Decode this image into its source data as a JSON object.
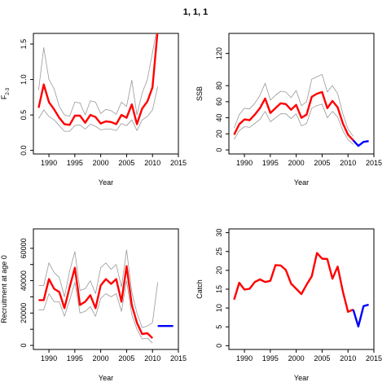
{
  "title": "1, 1, 1",
  "colors": {
    "estimate": "#ff0000",
    "interval": "#999999",
    "projection": "#0000ff"
  },
  "chart_data": [
    {
      "id": "F",
      "type": "line",
      "title": "",
      "xlabel": "Year",
      "ylabel": "F",
      "ylabel_sub": "2-3",
      "xlim": [
        1987,
        2015
      ],
      "ylim": [
        -0.05,
        1.65
      ],
      "xticks": [
        1990,
        1995,
        2000,
        2005,
        2010,
        2015
      ],
      "yticks": [
        0.0,
        0.5,
        1.0,
        1.5
      ],
      "ytick_labels": [
        "0.0",
        "0.5",
        "1.0",
        "1.5"
      ],
      "x": [
        1988,
        1989,
        1990,
        1991,
        1992,
        1993,
        1994,
        1995,
        1996,
        1997,
        1998,
        1999,
        2000,
        2001,
        2002,
        2003,
        2004,
        2005,
        2006,
        2007,
        2008,
        2009,
        2010,
        2011
      ],
      "series": [
        {
          "role": "estimate",
          "values": [
            0.6,
            0.93,
            0.68,
            0.58,
            0.46,
            0.37,
            0.36,
            0.49,
            0.49,
            0.39,
            0.5,
            0.47,
            0.38,
            0.41,
            0.4,
            0.37,
            0.5,
            0.46,
            0.65,
            0.37,
            0.59,
            0.69,
            0.89,
            1.7
          ]
        },
        {
          "role": "upper",
          "values": [
            0.85,
            1.45,
            1.0,
            0.87,
            0.62,
            0.5,
            0.48,
            0.68,
            0.67,
            0.5,
            0.7,
            0.68,
            0.52,
            0.58,
            0.56,
            0.51,
            0.68,
            0.62,
            0.99,
            0.5,
            0.81,
            1.0,
            1.38,
            1.78
          ]
        },
        {
          "role": "lower",
          "values": [
            0.45,
            0.57,
            0.48,
            0.43,
            0.35,
            0.27,
            0.27,
            0.35,
            0.36,
            0.3,
            0.37,
            0.34,
            0.29,
            0.3,
            0.3,
            0.28,
            0.38,
            0.35,
            0.43,
            0.28,
            0.43,
            0.48,
            0.57,
            0.9
          ]
        }
      ]
    },
    {
      "id": "SSB",
      "type": "line",
      "title": "",
      "xlabel": "Year",
      "ylabel": "SSB",
      "xlim": [
        1987,
        2015
      ],
      "ylim": [
        -5,
        145
      ],
      "xticks": [
        1990,
        1995,
        2000,
        2005,
        2010,
        2015
      ],
      "yticks": [
        0,
        20,
        40,
        60,
        80,
        120
      ],
      "ytick_labels": [
        "0",
        "20",
        "40",
        "60",
        "80",
        "120"
      ],
      "x": [
        1988,
        1989,
        1990,
        1991,
        1992,
        1993,
        1994,
        1995,
        1996,
        1997,
        1998,
        1999,
        2000,
        2001,
        2002,
        2003,
        2004,
        2005,
        2006,
        2007,
        2008,
        2009,
        2010,
        2011
      ],
      "series": [
        {
          "role": "estimate",
          "values": [
            19,
            32,
            38,
            37,
            44,
            52,
            64,
            46,
            52,
            58,
            57,
            50,
            56,
            40,
            44,
            66,
            70,
            72,
            52,
            61,
            53,
            33,
            19,
            12
          ]
        },
        {
          "role": "upper",
          "values": [
            27,
            44,
            52,
            51,
            58,
            68,
            83,
            62,
            68,
            73,
            72,
            65,
            74,
            55,
            60,
            88,
            91,
            94,
            72,
            80,
            70,
            45,
            26,
            17
          ]
        },
        {
          "role": "lower",
          "values": [
            13,
            24,
            29,
            28,
            33,
            38,
            48,
            35,
            40,
            45,
            45,
            39,
            45,
            30,
            33,
            52,
            55,
            57,
            40,
            48,
            41,
            24,
            13,
            7
          ]
        },
        {
          "role": "projection",
          "x": [
            2011,
            2012,
            2013,
            2014
          ],
          "values": [
            12,
            5,
            10,
            11
          ]
        }
      ]
    },
    {
      "id": "Recruitment",
      "type": "line",
      "title": "",
      "xlabel": "Year",
      "ylabel": "Recruitment at age 0",
      "xlim": [
        1987,
        2015
      ],
      "ylim": [
        -2500,
        72000
      ],
      "xticks": [
        1990,
        1995,
        2000,
        2005,
        2010,
        2015
      ],
      "yticks": [
        0,
        10000,
        20000,
        30000,
        40000,
        50000,
        60000
      ],
      "ytick_labels": [
        "0",
        "",
        "20000",
        "",
        "40000",
        "",
        "60000"
      ],
      "x": [
        1988,
        1989,
        1990,
        1991,
        1992,
        1993,
        1994,
        1995,
        1996,
        1997,
        1998,
        1999,
        2000,
        2001,
        2002,
        2003,
        2004,
        2005,
        2006,
        2007,
        2008,
        2009,
        2010
      ],
      "series": [
        {
          "role": "estimate",
          "values": [
            28000,
            28000,
            41000,
            35000,
            33000,
            23000,
            36000,
            48000,
            25000,
            27000,
            31000,
            23000,
            37000,
            41000,
            38000,
            41000,
            27000,
            49000,
            25000,
            14000,
            7000,
            7500,
            4500
          ]
        },
        {
          "role": "upper",
          "values": [
            37000,
            37000,
            51000,
            45000,
            42000,
            30000,
            46000,
            58000,
            34000,
            35000,
            40000,
            32000,
            48000,
            51000,
            47000,
            50000,
            36000,
            59000,
            33000,
            20000,
            11000,
            12000,
            14000
          ]
        },
        {
          "role": "lower",
          "values": [
            22000,
            22000,
            32000,
            27000,
            27000,
            18000,
            28000,
            39000,
            20000,
            21000,
            24000,
            18000,
            29000,
            32000,
            30000,
            32000,
            21000,
            40000,
            19000,
            10000,
            4000,
            4500,
            1500
          ]
        },
        {
          "role": "upper_tail",
          "x": [
            2010,
            2011
          ],
          "values": [
            14000,
            39000
          ]
        },
        {
          "role": "projection",
          "x": [
            2011,
            2012,
            2013,
            2014
          ],
          "values": [
            12000,
            12000,
            12000,
            12000
          ]
        }
      ]
    },
    {
      "id": "Catch",
      "type": "line",
      "title": "",
      "xlabel": "Year",
      "ylabel": "Catch",
      "xlim": [
        1987,
        2015
      ],
      "ylim": [
        -1,
        31
      ],
      "xticks": [
        1990,
        1995,
        2000,
        2005,
        2010,
        2015
      ],
      "yticks": [
        0,
        5,
        10,
        15,
        20,
        25,
        30
      ],
      "ytick_labels": [
        "0",
        "5",
        "10",
        "15",
        "20",
        "25",
        "30"
      ],
      "x": [
        1988,
        1989,
        1990,
        1991,
        1992,
        1993,
        1994,
        1995,
        1996,
        1997,
        1998,
        1999,
        2000,
        2001,
        2002,
        2003,
        2004,
        2005,
        2006,
        2007,
        2008,
        2009,
        2010,
        2011
      ],
      "series": [
        {
          "role": "estimate",
          "values": [
            12.2,
            16.7,
            14.9,
            15.1,
            16.9,
            17.6,
            16.9,
            17.2,
            21.4,
            21.3,
            20.1,
            16.5,
            15.1,
            13.7,
            16.2,
            18.4,
            24.6,
            23.1,
            23.0,
            17.8,
            21.0,
            14.4,
            9.0,
            9.6
          ]
        },
        {
          "role": "projection",
          "x": [
            2011,
            2012,
            2013,
            2014
          ],
          "values": [
            9.6,
            5.1,
            10.5,
            10.9
          ]
        }
      ]
    }
  ]
}
